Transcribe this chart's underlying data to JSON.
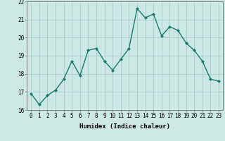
{
  "x": [
    0,
    1,
    2,
    3,
    4,
    5,
    6,
    7,
    8,
    9,
    10,
    11,
    12,
    13,
    14,
    15,
    16,
    17,
    18,
    19,
    20,
    21,
    22,
    23
  ],
  "y": [
    16.9,
    16.3,
    16.8,
    17.1,
    17.7,
    18.7,
    17.9,
    19.3,
    19.4,
    18.7,
    18.2,
    18.8,
    19.4,
    21.6,
    21.1,
    21.3,
    20.1,
    20.6,
    20.4,
    19.7,
    19.3,
    18.7,
    17.7,
    17.6
  ],
  "line_color": "#1a7a6e",
  "marker": "D",
  "marker_size": 2.0,
  "bg_color": "#cce8e4",
  "grid_color": "#aaccc8",
  "xlabel": "Humidex (Indice chaleur)",
  "ylim": [
    16,
    22
  ],
  "xlim": [
    -0.5,
    23.5
  ],
  "yticks": [
    16,
    17,
    18,
    19,
    20,
    21,
    22
  ],
  "xticks": [
    0,
    1,
    2,
    3,
    4,
    5,
    6,
    7,
    8,
    9,
    10,
    11,
    12,
    13,
    14,
    15,
    16,
    17,
    18,
    19,
    20,
    21,
    22,
    23
  ],
  "xlabel_fontsize": 6.5,
  "tick_fontsize": 5.5,
  "linewidth": 1.0
}
